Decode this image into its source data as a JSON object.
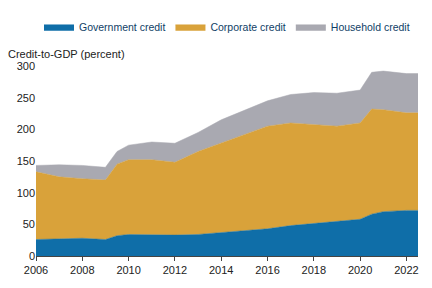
{
  "chart_data": {
    "type": "area",
    "stacked": true,
    "ylabel": "Credit-to-GDP (percent)",
    "x": [
      2006,
      2007,
      2008,
      2009,
      2009.5,
      2010,
      2011,
      2012,
      2013,
      2014,
      2015,
      2016,
      2017,
      2018,
      2019,
      2020,
      2020.5,
      2021,
      2022,
      2022.5
    ],
    "series": [
      {
        "name": "Government credit",
        "color": "#0f6ea8",
        "values": [
          26,
          27,
          28,
          26,
          32,
          34,
          33,
          33,
          34,
          37,
          40,
          43,
          48,
          51,
          54,
          58,
          66,
          70,
          72,
          72
        ]
      },
      {
        "name": "Corporate credit",
        "color": "#d9a23a",
        "values": [
          107,
          98,
          94,
          94,
          113,
          118,
          119,
          115,
          131,
          141,
          152,
          162,
          162,
          156,
          151,
          152,
          166,
          161,
          154,
          154
        ]
      },
      {
        "name": "Household credit",
        "color": "#a9a9b1",
        "values": [
          10,
          19,
          21,
          20,
          20,
          23,
          28,
          30,
          30,
          37,
          38,
          40,
          45,
          51,
          52,
          52,
          58,
          61,
          62,
          62
        ]
      }
    ],
    "xlim": [
      2006,
      2022.5
    ],
    "xticks": [
      2006,
      2008,
      2010,
      2012,
      2014,
      2016,
      2018,
      2020,
      2022
    ],
    "ylim": [
      0,
      300
    ],
    "yticks": [
      0,
      50,
      100,
      150,
      200,
      250,
      300
    ],
    "grid": false,
    "legend": "top"
  }
}
